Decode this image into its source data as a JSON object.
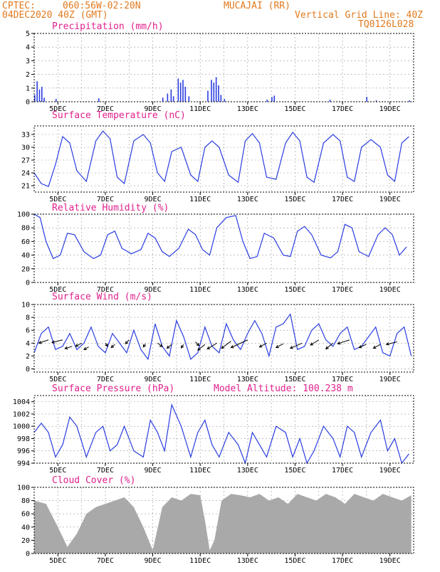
{
  "header": {
    "source": "CPTEC:",
    "coords": "060:56W-02:20N",
    "location": "MUCAJAI (RR)",
    "run": "04DEC2020 40Z (GMT)",
    "grid_note": "Vertical Grid Line: 40Z",
    "model": "TQ0126L028"
  },
  "colors": {
    "header": "#e07a1f",
    "title": "#e0208c",
    "series": "#2a3de0",
    "cloud": "#a9a9a9"
  },
  "chart_data": [
    {
      "type": "bar",
      "title": "Precipitation (mm/h)",
      "ylim": [
        0,
        5
      ],
      "yticks": [
        "0",
        "1",
        "2",
        "3",
        "4",
        "5"
      ],
      "xticks": [
        "5DEC",
        "7DEC",
        "9DEC",
        "11DEC",
        "13DEC",
        "15DEC",
        "17DEC",
        "19DEC"
      ],
      "grid": true,
      "bars": [
        [
          0.0,
          0.5
        ],
        [
          0.1,
          1.5
        ],
        [
          0.2,
          0.9
        ],
        [
          0.3,
          1.1
        ],
        [
          0.4,
          0.3
        ],
        [
          0.9,
          0.2
        ],
        [
          2.7,
          0.25
        ],
        [
          5.4,
          0.3
        ],
        [
          5.6,
          0.6
        ],
        [
          5.75,
          0.9
        ],
        [
          5.85,
          0.4
        ],
        [
          6.05,
          1.7
        ],
        [
          6.15,
          1.4
        ],
        [
          6.25,
          1.6
        ],
        [
          6.35,
          1.1
        ],
        [
          6.5,
          0.4
        ],
        [
          7.3,
          0.8
        ],
        [
          7.45,
          1.6
        ],
        [
          7.55,
          1.4
        ],
        [
          7.65,
          1.8
        ],
        [
          7.75,
          1.2
        ],
        [
          7.85,
          0.5
        ],
        [
          8.0,
          0.2
        ],
        [
          9.8,
          0.15
        ],
        [
          10.0,
          0.35
        ],
        [
          10.1,
          0.45
        ],
        [
          12.45,
          0.15
        ],
        [
          14.0,
          0.35
        ],
        [
          14.4,
          0.1
        ],
        [
          15.8,
          0.1
        ]
      ]
    },
    {
      "type": "line",
      "title": "Surface Temperature (nC)",
      "ylim": [
        19.5,
        35
      ],
      "ytick_values": [
        21,
        24,
        27,
        30,
        33
      ],
      "yticks": [
        "21",
        "24",
        "27",
        "30",
        "33"
      ],
      "xticks": [
        "5DEC",
        "7DEC",
        "9DEC",
        "11DEC",
        "13DEC",
        "15DEC",
        "17DEC",
        "19DEC"
      ],
      "grid": true,
      "x": [
        0.0,
        0.3,
        0.6,
        0.9,
        1.2,
        1.5,
        1.8,
        2.2,
        2.6,
        2.9,
        3.2,
        3.5,
        3.8,
        4.2,
        4.6,
        4.9,
        5.2,
        5.5,
        5.8,
        6.2,
        6.6,
        6.9,
        7.2,
        7.5,
        7.8,
        8.2,
        8.6,
        8.9,
        9.2,
        9.5,
        9.8,
        10.2,
        10.6,
        10.9,
        11.2,
        11.5,
        11.8,
        12.2,
        12.6,
        12.9,
        13.2,
        13.5,
        13.8,
        14.2,
        14.6,
        14.9,
        15.2,
        15.5,
        15.8
      ],
      "y": [
        24,
        21.5,
        20.8,
        26,
        32.5,
        31,
        24.5,
        22,
        31.5,
        33.8,
        32,
        23,
        21.5,
        31.5,
        33,
        31,
        24,
        22,
        29,
        30,
        23.5,
        22,
        30,
        31.5,
        30,
        23.5,
        21.8,
        31.5,
        33.2,
        31,
        23,
        22.5,
        31,
        33.5,
        31.5,
        23,
        21.8,
        31,
        33,
        31.5,
        23,
        22,
        30,
        31.8,
        30,
        23.5,
        22,
        31,
        32.5
      ]
    },
    {
      "type": "line",
      "title": "Relative Humidity (%)",
      "ylim": [
        0,
        100
      ],
      "ytick_values": [
        0,
        20,
        40,
        60,
        80,
        100
      ],
      "yticks": [
        "0",
        "20",
        "40",
        "60",
        "80",
        "100"
      ],
      "xticks": [
        "5DEC",
        "7DEC",
        "9DEC",
        "11DEC",
        "13DEC",
        "15DEC",
        "17DEC",
        "19DEC"
      ],
      "grid": true,
      "x": [
        0.0,
        0.25,
        0.5,
        0.8,
        1.1,
        1.4,
        1.7,
        2.1,
        2.5,
        2.8,
        3.1,
        3.4,
        3.7,
        4.1,
        4.5,
        4.8,
        5.1,
        5.4,
        5.7,
        6.1,
        6.5,
        6.8,
        7.1,
        7.4,
        7.7,
        8.1,
        8.5,
        8.8,
        9.1,
        9.4,
        9.7,
        10.1,
        10.5,
        10.8,
        11.1,
        11.4,
        11.7,
        12.1,
        12.5,
        12.8,
        13.1,
        13.4,
        13.7,
        14.1,
        14.5,
        14.8,
        15.1,
        15.4,
        15.7
      ],
      "y": [
        100,
        95,
        60,
        35,
        40,
        72,
        70,
        45,
        35,
        40,
        70,
        75,
        50,
        42,
        48,
        72,
        65,
        45,
        38,
        50,
        78,
        70,
        48,
        40,
        80,
        95,
        98,
        60,
        35,
        38,
        72,
        65,
        40,
        38,
        75,
        82,
        70,
        40,
        36,
        45,
        85,
        80,
        45,
        38,
        70,
        80,
        70,
        40,
        52
      ]
    },
    {
      "type": "line",
      "title": "Surface Wind (m/s)",
      "ylim": [
        -0.5,
        10
      ],
      "ytick_values": [
        0,
        2,
        4,
        6,
        8,
        10
      ],
      "yticks": [
        "0",
        "2",
        "4",
        "6",
        "8",
        "10"
      ],
      "xticks": [
        "5DEC",
        "7DEC",
        "9DEC",
        "11DEC",
        "13DEC",
        "15DEC",
        "17DEC",
        "19DEC"
      ],
      "grid": true,
      "x": [
        0.0,
        0.3,
        0.6,
        0.9,
        1.2,
        1.5,
        1.8,
        2.1,
        2.4,
        2.7,
        3.0,
        3.3,
        3.6,
        3.9,
        4.2,
        4.5,
        4.8,
        5.1,
        5.4,
        5.7,
        6.0,
        6.3,
        6.6,
        6.9,
        7.2,
        7.5,
        7.8,
        8.1,
        8.4,
        8.7,
        9.0,
        9.3,
        9.6,
        9.9,
        10.2,
        10.5,
        10.8,
        11.1,
        11.4,
        11.7,
        12.0,
        12.3,
        12.6,
        12.9,
        13.2,
        13.5,
        13.8,
        14.1,
        14.4,
        14.7,
        15.0,
        15.3,
        15.6,
        15.9
      ],
      "y": [
        2.5,
        5.5,
        6.5,
        3.0,
        3.5,
        5.5,
        3.0,
        4.0,
        6.5,
        3.5,
        2.5,
        5.5,
        4.0,
        2.5,
        6.0,
        3.0,
        1.5,
        7.0,
        3.5,
        2.0,
        7.5,
        5.0,
        1.5,
        2.5,
        6.5,
        3.5,
        2.5,
        7.0,
        4.5,
        3.0,
        5.5,
        7.5,
        5.5,
        2.0,
        6.5,
        7.0,
        8.5,
        3.0,
        3.5,
        6.0,
        7.0,
        4.5,
        3.5,
        5.5,
        6.5,
        3.0,
        3.5,
        5.0,
        6.5,
        2.5,
        2.0,
        5.5,
        6.5,
        2.0
      ],
      "arrows": [
        [
          0.6,
          4.5,
          -0.4,
          -0.5
        ],
        [
          1.2,
          4.5,
          -0.45,
          -0.4
        ],
        [
          1.6,
          3.5,
          -0.3,
          -0.35
        ],
        [
          2.0,
          4.0,
          -0.25,
          -0.5
        ],
        [
          2.3,
          3.4,
          -0.2,
          -0.4
        ],
        [
          3.0,
          4.0,
          0.1,
          -0.5
        ],
        [
          3.4,
          3.8,
          -0.15,
          -0.5
        ],
        [
          4.0,
          4.5,
          -0.15,
          -0.6
        ],
        [
          4.7,
          3.9,
          -0.1,
          -0.5
        ],
        [
          5.2,
          4.0,
          0.2,
          -0.55
        ],
        [
          5.8,
          3.8,
          -0.2,
          -0.6
        ],
        [
          6.3,
          3.8,
          -0.1,
          -0.55
        ],
        [
          6.8,
          4.2,
          0.15,
          -0.6
        ],
        [
          7.2,
          3.8,
          -0.3,
          -0.9
        ],
        [
          7.7,
          4.0,
          -0.4,
          -0.9
        ],
        [
          8.3,
          4.3,
          -0.4,
          -1.1
        ],
        [
          9.0,
          4.5,
          -0.7,
          -1.2
        ],
        [
          9.8,
          4.0,
          -0.3,
          -0.6
        ],
        [
          10.5,
          3.9,
          -0.3,
          -0.6
        ],
        [
          11.3,
          4.0,
          -0.5,
          -0.8
        ],
        [
          12.0,
          4.5,
          -0.35,
          -0.8
        ],
        [
          12.6,
          4.0,
          -0.3,
          -0.9
        ],
        [
          13.3,
          4.5,
          -0.5,
          -0.6
        ],
        [
          14.0,
          3.8,
          -0.3,
          -0.5
        ],
        [
          14.6,
          3.8,
          -0.3,
          -0.6
        ],
        [
          15.3,
          4.2,
          -0.45,
          -0.4
        ]
      ]
    },
    {
      "type": "line",
      "title": "Surface Pressure (hPa)",
      "annotation": "Model Altitude: 100.238 m",
      "ylim": [
        994,
        1005
      ],
      "ytick_values": [
        994,
        996,
        998,
        1000,
        1002,
        1004
      ],
      "yticks": [
        "994",
        "996",
        "998",
        "1000",
        "1002",
        "1004"
      ],
      "xticks": [
        "5DEC",
        "7DEC",
        "9DEC",
        "11DEC",
        "13DEC",
        "15DEC",
        "17DEC",
        "19DEC"
      ],
      "grid": true,
      "x": [
        0.0,
        0.3,
        0.6,
        0.9,
        1.2,
        1.5,
        1.8,
        2.2,
        2.6,
        2.9,
        3.2,
        3.5,
        3.8,
        4.2,
        4.6,
        4.9,
        5.2,
        5.5,
        5.8,
        6.2,
        6.6,
        6.9,
        7.2,
        7.5,
        7.8,
        8.2,
        8.6,
        8.9,
        9.2,
        9.5,
        9.8,
        10.2,
        10.6,
        10.9,
        11.2,
        11.5,
        11.8,
        12.2,
        12.6,
        12.9,
        13.2,
        13.5,
        13.8,
        14.2,
        14.6,
        14.9,
        15.2,
        15.5,
        15.8
      ],
      "y": [
        999,
        1000.5,
        999,
        995,
        997,
        1001.5,
        1000,
        995,
        999,
        1000,
        996,
        997,
        1000,
        996,
        995,
        1001,
        999,
        996,
        1003.5,
        1000,
        995,
        999,
        1001,
        997,
        995,
        999,
        997,
        994,
        999,
        997,
        995,
        1000,
        999,
        995,
        998,
        994,
        996,
        1000,
        998,
        995,
        1000,
        999,
        995,
        999,
        1001,
        996,
        998,
        994,
        995.5
      ]
    },
    {
      "type": "bar",
      "title": "Cloud Cover (%)",
      "ylim": [
        0,
        100
      ],
      "ytick_values": [
        0,
        20,
        40,
        60,
        80,
        100
      ],
      "yticks": [
        "0",
        "20",
        "40",
        "60",
        "80",
        "100"
      ],
      "xticks": [
        "5DEC",
        "7DEC",
        "9DEC",
        "11DEC",
        "13DEC",
        "15DEC",
        "17DEC",
        "19DEC"
      ],
      "grid": true,
      "x": [
        0.0,
        0.5,
        1.0,
        1.4,
        1.8,
        2.2,
        2.6,
        3.0,
        3.4,
        3.8,
        4.2,
        4.6,
        5.0,
        5.4,
        5.8,
        6.2,
        6.6,
        7.0,
        7.2,
        7.4,
        7.6,
        7.9,
        8.3,
        8.7,
        9.1,
        9.5,
        9.9,
        10.3,
        10.7,
        11.1,
        11.5,
        11.9,
        12.3,
        12.7,
        13.1,
        13.5,
        13.9,
        14.3,
        14.7,
        15.1,
        15.5,
        15.9
      ],
      "values": [
        80,
        75,
        40,
        10,
        30,
        60,
        70,
        75,
        80,
        85,
        70,
        40,
        5,
        70,
        85,
        80,
        90,
        88,
        50,
        5,
        20,
        80,
        90,
        88,
        85,
        90,
        80,
        85,
        75,
        90,
        85,
        80,
        90,
        85,
        75,
        90,
        85,
        80,
        90,
        85,
        80,
        88
      ]
    }
  ]
}
